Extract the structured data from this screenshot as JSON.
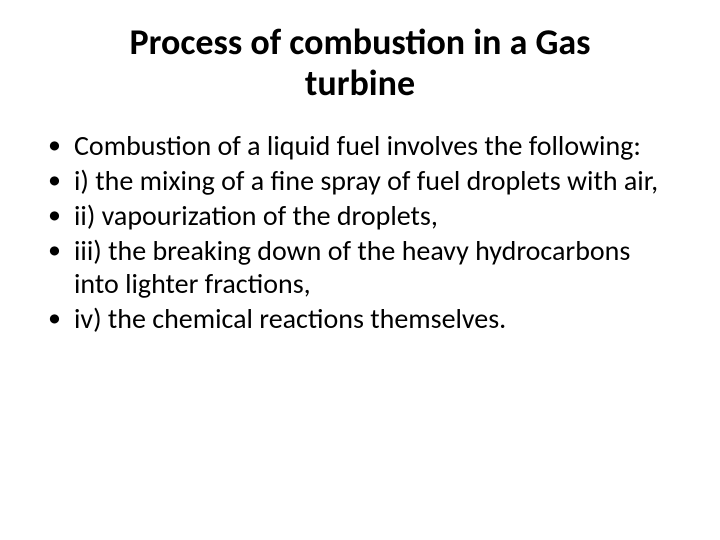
{
  "slide": {
    "title": "Process of combustion in a Gas turbine",
    "title_fontsize": 36,
    "title_fontweight": 700,
    "title_color": "#000000",
    "body_fontsize": 28,
    "body_color": "#000000",
    "background_color": "#ffffff",
    "bullets": [
      "Combustion of a liquid fuel involves the following:",
      "i) the mixing of a fine spray of fuel droplets with air,",
      "ii) vapourization of the droplets,",
      "iii) the breaking down of the heavy hydrocarbons into lighter fractions,",
      "iv) the chemical reactions themselves."
    ]
  }
}
